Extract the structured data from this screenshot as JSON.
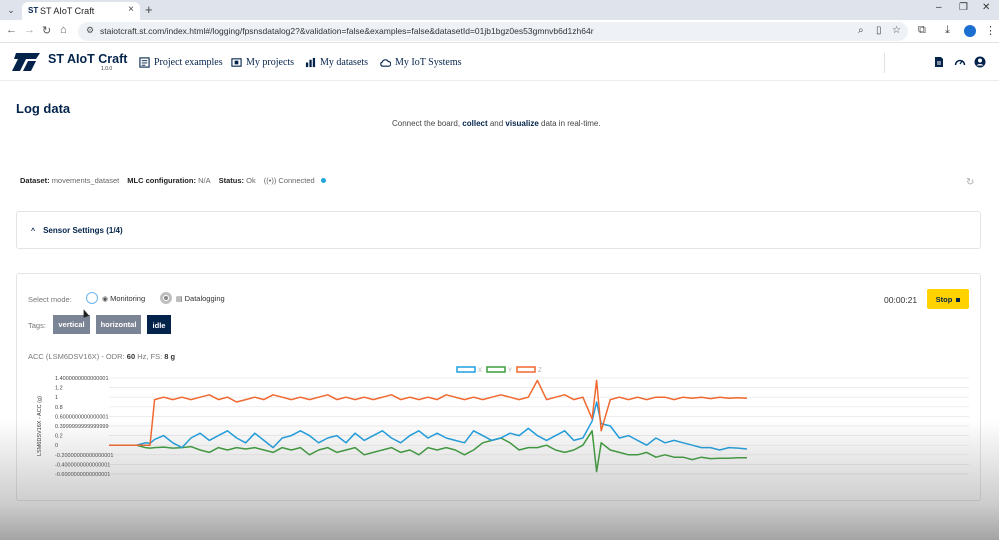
{
  "browser": {
    "tab_title": "ST AIoT Craft",
    "url": "staiotcraft.st.com/index.html#/logging/fpsnsdatalog2?&validation=false&examples=false&datasetId=01jb1bgz0es53gmnvb6d1zh64r"
  },
  "app": {
    "brand": "ST AIoT Craft",
    "version": "1.0.0",
    "nav": [
      {
        "label": "Project examples",
        "icon": "document-grid-icon"
      },
      {
        "label": "My projects",
        "icon": "board-icon"
      },
      {
        "label": "My datasets",
        "icon": "bar-chart-icon"
      },
      {
        "label": "My IoT Systems",
        "icon": "cloud-icon"
      }
    ]
  },
  "page": {
    "title": "Log data",
    "intro_pre": "Connect the board, ",
    "intro_b1": "collect",
    "intro_mid": " and ",
    "intro_b2": "visualize",
    "intro_post": " data in real-time."
  },
  "info": {
    "dataset_label": "Dataset:",
    "dataset_value": "movements_dataset",
    "mlc_label": "MLC configuration:",
    "mlc_value": "N/A",
    "status_label": "Status:",
    "status_value": "Ok",
    "connection_value": "Connected",
    "connection_color": "#1ea7dd"
  },
  "sensor_settings": {
    "label": "Sensor Settings (1/4)"
  },
  "mode": {
    "label": "Select mode:",
    "monitoring": "Monitoring",
    "datalogging": "Datalogging",
    "selected": "Datalogging"
  },
  "tags": {
    "label": "Tags:",
    "items": [
      "vertical",
      "horizontal",
      "idle"
    ],
    "active": "idle"
  },
  "timer": "00:00:21",
  "stop_label": "Stop",
  "chart_heading": {
    "sensor": "ACC (LSM6DSV16X) - ODR: ",
    "odr": "60",
    "odr_unit": " Hz, FS: ",
    "fs": "8 g"
  },
  "colors": {
    "x": "#1f9fe0",
    "y": "#3c9d3c",
    "z": "#f0682f",
    "accent": "#ffd200",
    "brand": "#03234b"
  },
  "chart_data": {
    "type": "line",
    "ylabel": "LSM6DSV16X - ACC (g)",
    "ylim": [
      -0.6,
      1.4
    ],
    "yticks": [
      "1.4000000000000001",
      "1.2",
      "1",
      "0.8",
      "0.6000000000000001",
      "0.3999999999999999",
      "0.2",
      "0",
      "-0.20000000000000001",
      "-0.4000000000000001",
      "-0.6000000000000001"
    ],
    "legend_position": "top-center",
    "grid": true,
    "x": [
      0,
      4,
      8,
      12,
      16,
      18,
      20,
      24,
      28,
      32,
      36,
      40,
      44,
      48,
      52,
      56,
      60,
      64,
      68,
      72,
      76,
      80,
      84,
      88,
      92,
      96,
      100,
      104,
      108,
      112,
      116,
      120,
      124,
      128,
      132,
      136,
      140,
      144,
      148,
      152,
      156,
      160,
      164,
      168,
      172,
      176,
      180,
      184,
      188,
      192,
      196,
      200,
      204,
      208,
      212,
      214,
      216,
      220,
      224,
      228,
      232,
      236,
      240,
      244,
      248,
      252,
      256,
      260,
      264,
      268,
      272,
      276,
      280
    ],
    "series": [
      {
        "name": "X",
        "color": "#1f9fe0",
        "values": [
          0,
          0,
          0,
          0,
          0.05,
          0.04,
          0.12,
          0.2,
          0.05,
          -0.05,
          0.15,
          0.25,
          0.1,
          0.2,
          0.3,
          0.15,
          0.05,
          0.25,
          0.1,
          -0.05,
          0.15,
          0.2,
          0.3,
          0.2,
          0.05,
          0.15,
          0.2,
          0.05,
          0.25,
          0.1,
          0.2,
          0.3,
          0.15,
          0.05,
          0.2,
          0.3,
          0.15,
          0.25,
          0.15,
          0.1,
          0.05,
          0.3,
          0.2,
          0.1,
          0.15,
          0.25,
          0.2,
          0.35,
          0.2,
          0.1,
          0.2,
          0.3,
          0.1,
          0.15,
          0.5,
          0.9,
          0.45,
          0.4,
          0.15,
          0.2,
          0.1,
          0.0,
          0.15,
          0.05,
          0.1,
          0.05,
          0.0,
          -0.05,
          -0.05,
          -0.1,
          -0.05,
          -0.06,
          -0.08
        ]
      },
      {
        "name": "Y",
        "color": "#3c9d3c",
        "values": [
          0,
          0,
          0,
          0,
          -0.05,
          -0.06,
          -0.05,
          -0.04,
          -0.06,
          -0.05,
          -0.03,
          -0.1,
          -0.15,
          -0.05,
          -0.1,
          -0.05,
          -0.08,
          -0.05,
          -0.1,
          -0.15,
          -0.05,
          -0.1,
          -0.05,
          -0.2,
          -0.1,
          -0.05,
          -0.15,
          -0.1,
          -0.05,
          -0.2,
          -0.15,
          -0.1,
          -0.05,
          -0.15,
          -0.1,
          -0.2,
          -0.05,
          -0.1,
          -0.05,
          -0.1,
          -0.2,
          -0.1,
          0.05,
          0.1,
          0.15,
          0.05,
          -0.1,
          -0.05,
          -0.05,
          0.0,
          -0.1,
          -0.15,
          -0.1,
          0.0,
          0.3,
          -0.55,
          0.05,
          -0.1,
          -0.15,
          -0.2,
          -0.2,
          -0.15,
          -0.25,
          -0.2,
          -0.25,
          -0.25,
          -0.3,
          -0.25,
          -0.28,
          -0.27,
          -0.27,
          -0.26,
          -0.26
        ]
      },
      {
        "name": "Z",
        "color": "#f0682f",
        "values": [
          0,
          0,
          0,
          0,
          0,
          0,
          0.95,
          1.0,
          0.95,
          1.0,
          0.95,
          1.0,
          1.05,
          0.95,
          1.0,
          0.9,
          0.95,
          1.0,
          0.95,
          1.05,
          1.0,
          0.95,
          1.0,
          0.95,
          1.0,
          1.05,
          0.95,
          1.0,
          0.95,
          1.0,
          0.95,
          1.0,
          1.05,
          0.95,
          1.0,
          0.95,
          1.0,
          0.95,
          1.05,
          1.0,
          0.95,
          1.0,
          0.95,
          1.0,
          1.05,
          1.0,
          0.95,
          1.0,
          1.35,
          0.95,
          1.0,
          1.05,
          0.95,
          1.0,
          0.55,
          1.35,
          0.3,
          0.95,
          1.0,
          0.95,
          1.0,
          0.95,
          1.0,
          1.0,
          0.95,
          1.0,
          0.98,
          1.0,
          0.97,
          1.0,
          0.98,
          0.99,
          0.98
        ]
      }
    ]
  }
}
